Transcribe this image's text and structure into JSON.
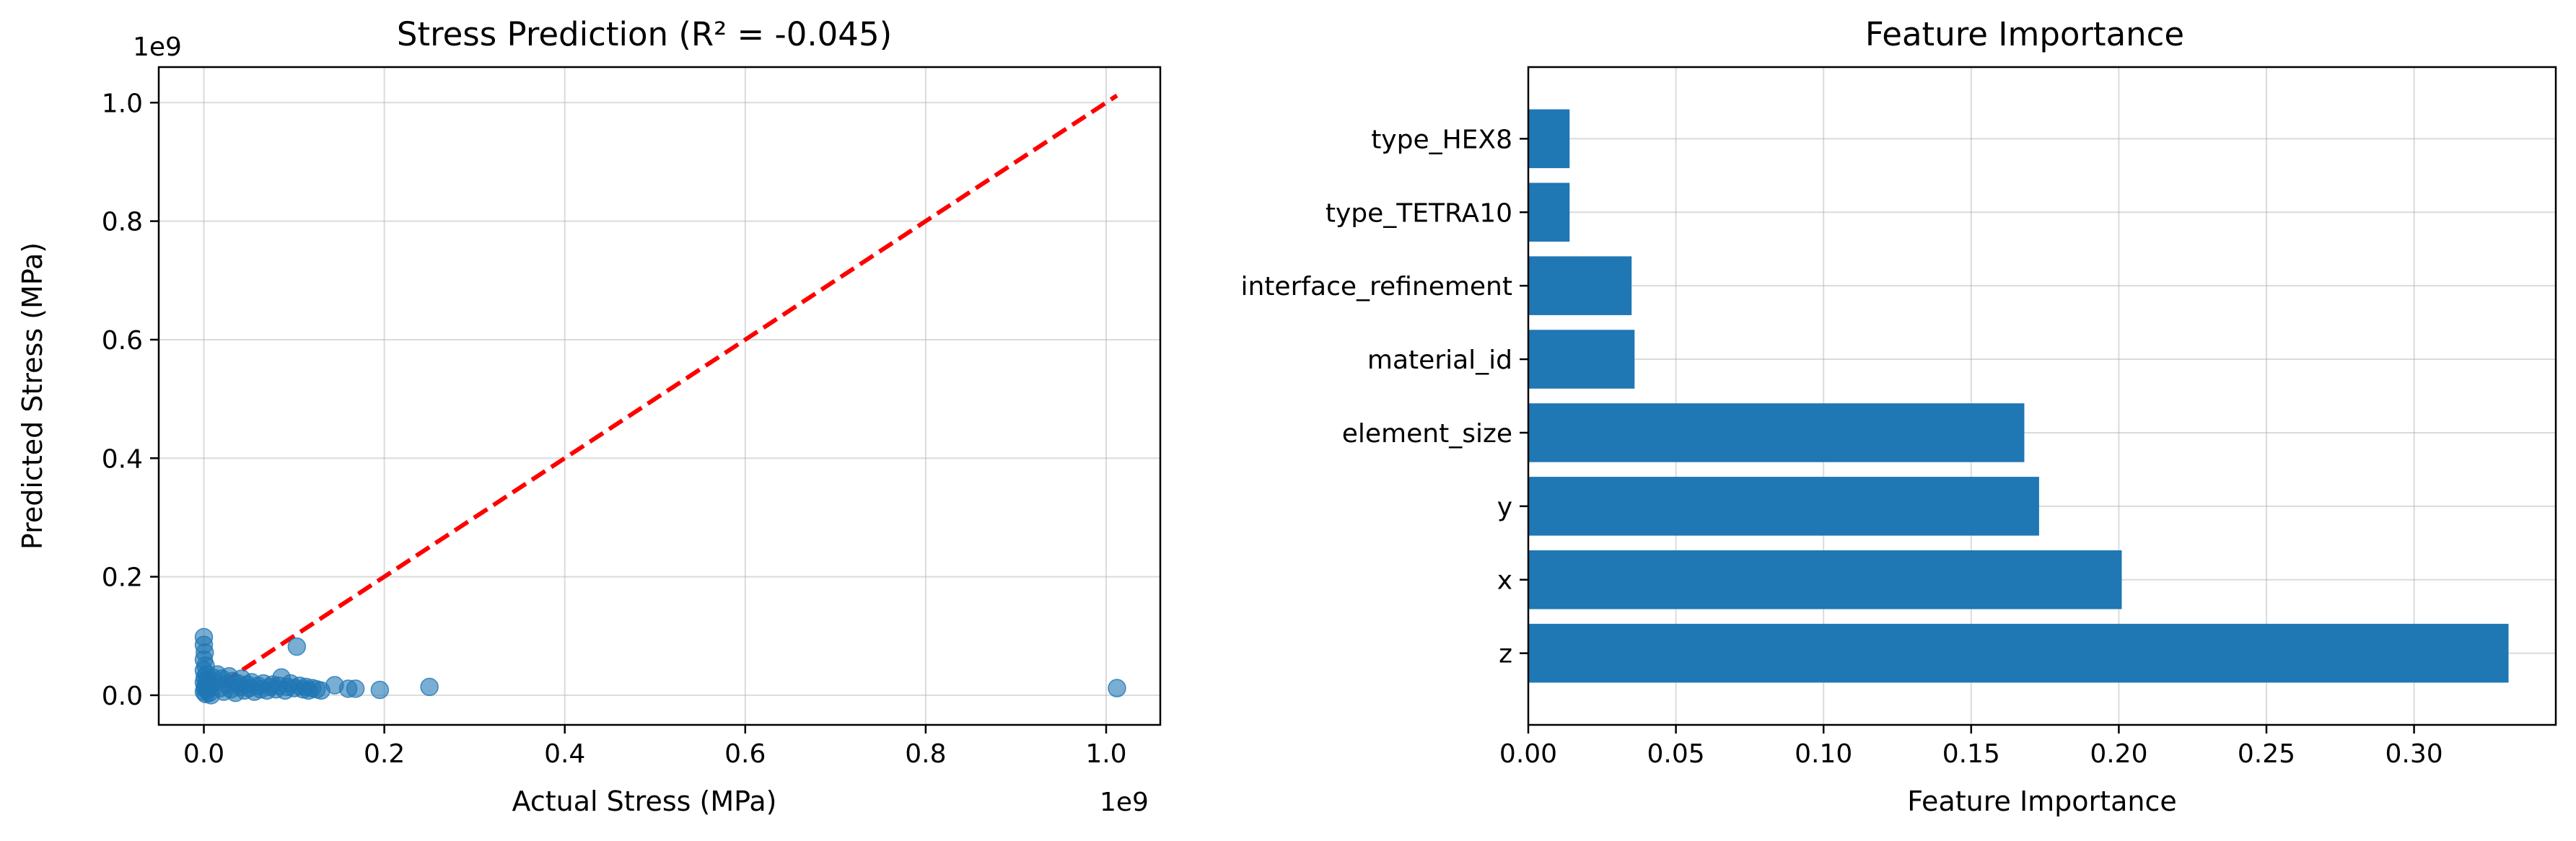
{
  "chart_data": [
    {
      "type": "scatter",
      "title": "Stress Prediction (R² = -0.045)",
      "xlabel": "Actual Stress (MPa)",
      "ylabel": "Predicted Stress (MPa)",
      "x_offset_label": "1e9",
      "y_offset_label": "1e9",
      "xlim": [
        -0.05,
        1.06
      ],
      "ylim": [
        -0.05,
        1.06
      ],
      "xticks": [
        0.0,
        0.2,
        0.4,
        0.6,
        0.8,
        1.0
      ],
      "xtick_labels": [
        "0.0",
        "0.2",
        "0.4",
        "0.6",
        "0.8",
        "1.0"
      ],
      "yticks": [
        0.0,
        0.2,
        0.4,
        0.6,
        0.8,
        1.0
      ],
      "ytick_labels": [
        "0.0",
        "0.2",
        "0.4",
        "0.6",
        "0.8",
        "1.0"
      ],
      "grid": true,
      "point_color": "#1f77b4",
      "reference_line": {
        "x": [
          0.0,
          1.012
        ],
        "y": [
          0.0,
          1.012
        ],
        "color": "#ff0000",
        "style": "dashed"
      },
      "points": [
        [
          0.0,
          0.098
        ],
        [
          0.0,
          0.085
        ],
        [
          0.001,
          0.072
        ],
        [
          0.0,
          0.06
        ],
        [
          0.002,
          0.05
        ],
        [
          0.0,
          0.042
        ],
        [
          0.003,
          0.035
        ],
        [
          0.001,
          0.03
        ],
        [
          0.004,
          0.026
        ],
        [
          0.0,
          0.022
        ],
        [
          0.002,
          0.018
        ],
        [
          0.005,
          0.015
        ],
        [
          0.001,
          0.012
        ],
        [
          0.003,
          0.009
        ],
        [
          0.0,
          0.006
        ],
        [
          0.006,
          0.004
        ],
        [
          0.002,
          0.002
        ],
        [
          0.008,
          0.0
        ],
        [
          0.01,
          0.03
        ],
        [
          0.012,
          0.022
        ],
        [
          0.015,
          0.035
        ],
        [
          0.018,
          0.012
        ],
        [
          0.02,
          0.028
        ],
        [
          0.022,
          0.006
        ],
        [
          0.025,
          0.018
        ],
        [
          0.028,
          0.032
        ],
        [
          0.03,
          0.01
        ],
        [
          0.032,
          0.024
        ],
        [
          0.035,
          0.004
        ],
        [
          0.038,
          0.02
        ],
        [
          0.04,
          0.014
        ],
        [
          0.042,
          0.028
        ],
        [
          0.045,
          0.008
        ],
        [
          0.048,
          0.018
        ],
        [
          0.05,
          0.012
        ],
        [
          0.053,
          0.022
        ],
        [
          0.056,
          0.006
        ],
        [
          0.06,
          0.016
        ],
        [
          0.063,
          0.01
        ],
        [
          0.066,
          0.02
        ],
        [
          0.07,
          0.008
        ],
        [
          0.073,
          0.014
        ],
        [
          0.076,
          0.018
        ],
        [
          0.08,
          0.01
        ],
        [
          0.083,
          0.016
        ],
        [
          0.086,
          0.03
        ],
        [
          0.09,
          0.008
        ],
        [
          0.093,
          0.014
        ],
        [
          0.096,
          0.02
        ],
        [
          0.1,
          0.012
        ],
        [
          0.103,
          0.082
        ],
        [
          0.106,
          0.016
        ],
        [
          0.11,
          0.01
        ],
        [
          0.113,
          0.014
        ],
        [
          0.116,
          0.008
        ],
        [
          0.12,
          0.012
        ],
        [
          0.125,
          0.01
        ],
        [
          0.13,
          0.008
        ],
        [
          0.145,
          0.017
        ],
        [
          0.16,
          0.011
        ],
        [
          0.168,
          0.011
        ],
        [
          0.195,
          0.009
        ],
        [
          0.25,
          0.014
        ],
        [
          1.012,
          0.012
        ]
      ]
    },
    {
      "type": "bar",
      "orientation": "horizontal",
      "title": "Feature Importance",
      "xlabel": "Feature Importance",
      "ylabel": "",
      "categories": [
        "z",
        "x",
        "y",
        "element_size",
        "material_id",
        "interface_refinement",
        "type_TETRA10",
        "type_HEX8"
      ],
      "values": [
        0.332,
        0.201,
        0.173,
        0.168,
        0.036,
        0.035,
        0.014,
        0.014
      ],
      "xlim": [
        0.0,
        0.348
      ],
      "xticks": [
        0.0,
        0.05,
        0.1,
        0.15,
        0.2,
        0.25,
        0.3
      ],
      "xtick_labels": [
        "0.00",
        "0.05",
        "0.10",
        "0.15",
        "0.20",
        "0.25",
        "0.30"
      ],
      "grid": true,
      "bar_color": "#1f77b4"
    }
  ]
}
